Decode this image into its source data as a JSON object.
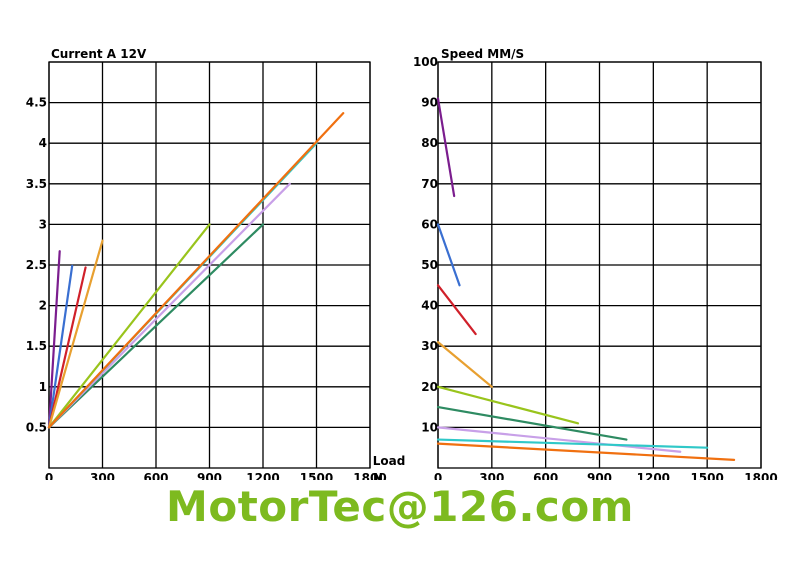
{
  "chart_data": [
    {
      "type": "line",
      "title": "Current A 12V",
      "xlabel": "Load N",
      "xlabel_line1": "Load",
      "xlabel_line2": "N",
      "ylabel": "Current A 12V",
      "xlim": [
        0,
        1800
      ],
      "ylim": [
        0,
        5
      ],
      "x_ticks": [
        0,
        300,
        600,
        900,
        1200,
        1500,
        1800
      ],
      "y_ticks": [
        0.5,
        1,
        1.5,
        2,
        2.5,
        3,
        3.5,
        4,
        4.5
      ],
      "series": [
        {
          "color": "#7b1d8e",
          "x": [
            0,
            60
          ],
          "y": [
            0.5,
            2.67
          ]
        },
        {
          "color": "#3a6fd1",
          "x": [
            0,
            130
          ],
          "y": [
            0.5,
            2.49
          ]
        },
        {
          "color": "#d0202a",
          "x": [
            0,
            205
          ],
          "y": [
            0.5,
            2.47
          ]
        },
        {
          "color": "#e8a030",
          "x": [
            0,
            300
          ],
          "y": [
            0.5,
            2.8
          ]
        },
        {
          "color": "#99c41c",
          "x": [
            0,
            900
          ],
          "y": [
            0.5,
            3.0
          ]
        },
        {
          "color": "#2e8b62",
          "x": [
            0,
            1200
          ],
          "y": [
            0.5,
            3.0
          ]
        },
        {
          "color": "#c8a0e8",
          "x": [
            0,
            1350
          ],
          "y": [
            0.5,
            3.5
          ]
        },
        {
          "color": "#30c8c8",
          "x": [
            0,
            1500
          ],
          "y": [
            0.5,
            4.0
          ]
        },
        {
          "color": "#f07010",
          "x": [
            0,
            1650
          ],
          "y": [
            0.5,
            4.37
          ]
        }
      ]
    },
    {
      "type": "line",
      "title": "Speed MM/S",
      "xlabel": "",
      "ylabel": "Speed MM/S",
      "xlim": [
        0,
        1800
      ],
      "ylim": [
        0,
        100
      ],
      "x_ticks": [
        0,
        300,
        600,
        900,
        1200,
        1500,
        1800
      ],
      "y_ticks": [
        10,
        20,
        30,
        40,
        50,
        60,
        70,
        80,
        90,
        100
      ],
      "series": [
        {
          "color": "#7b1d8e",
          "x": [
            0,
            90
          ],
          "y": [
            91,
            67
          ]
        },
        {
          "color": "#3a6fd1",
          "x": [
            0,
            120
          ],
          "y": [
            60,
            45
          ]
        },
        {
          "color": "#d0202a",
          "x": [
            0,
            210
          ],
          "y": [
            45,
            33
          ]
        },
        {
          "color": "#e8a030",
          "x": [
            0,
            300
          ],
          "y": [
            31,
            20
          ]
        },
        {
          "color": "#99c41c",
          "x": [
            0,
            780
          ],
          "y": [
            20,
            11
          ]
        },
        {
          "color": "#2e8b62",
          "x": [
            0,
            1050
          ],
          "y": [
            15,
            7
          ]
        },
        {
          "color": "#c8a0e8",
          "x": [
            0,
            1350
          ],
          "y": [
            10,
            4
          ]
        },
        {
          "color": "#30c8c8",
          "x": [
            0,
            1500
          ],
          "y": [
            7,
            5
          ]
        },
        {
          "color": "#f07010",
          "x": [
            0,
            1650
          ],
          "y": [
            6,
            2
          ]
        }
      ]
    }
  ],
  "watermark": "MotorTec@126.com"
}
